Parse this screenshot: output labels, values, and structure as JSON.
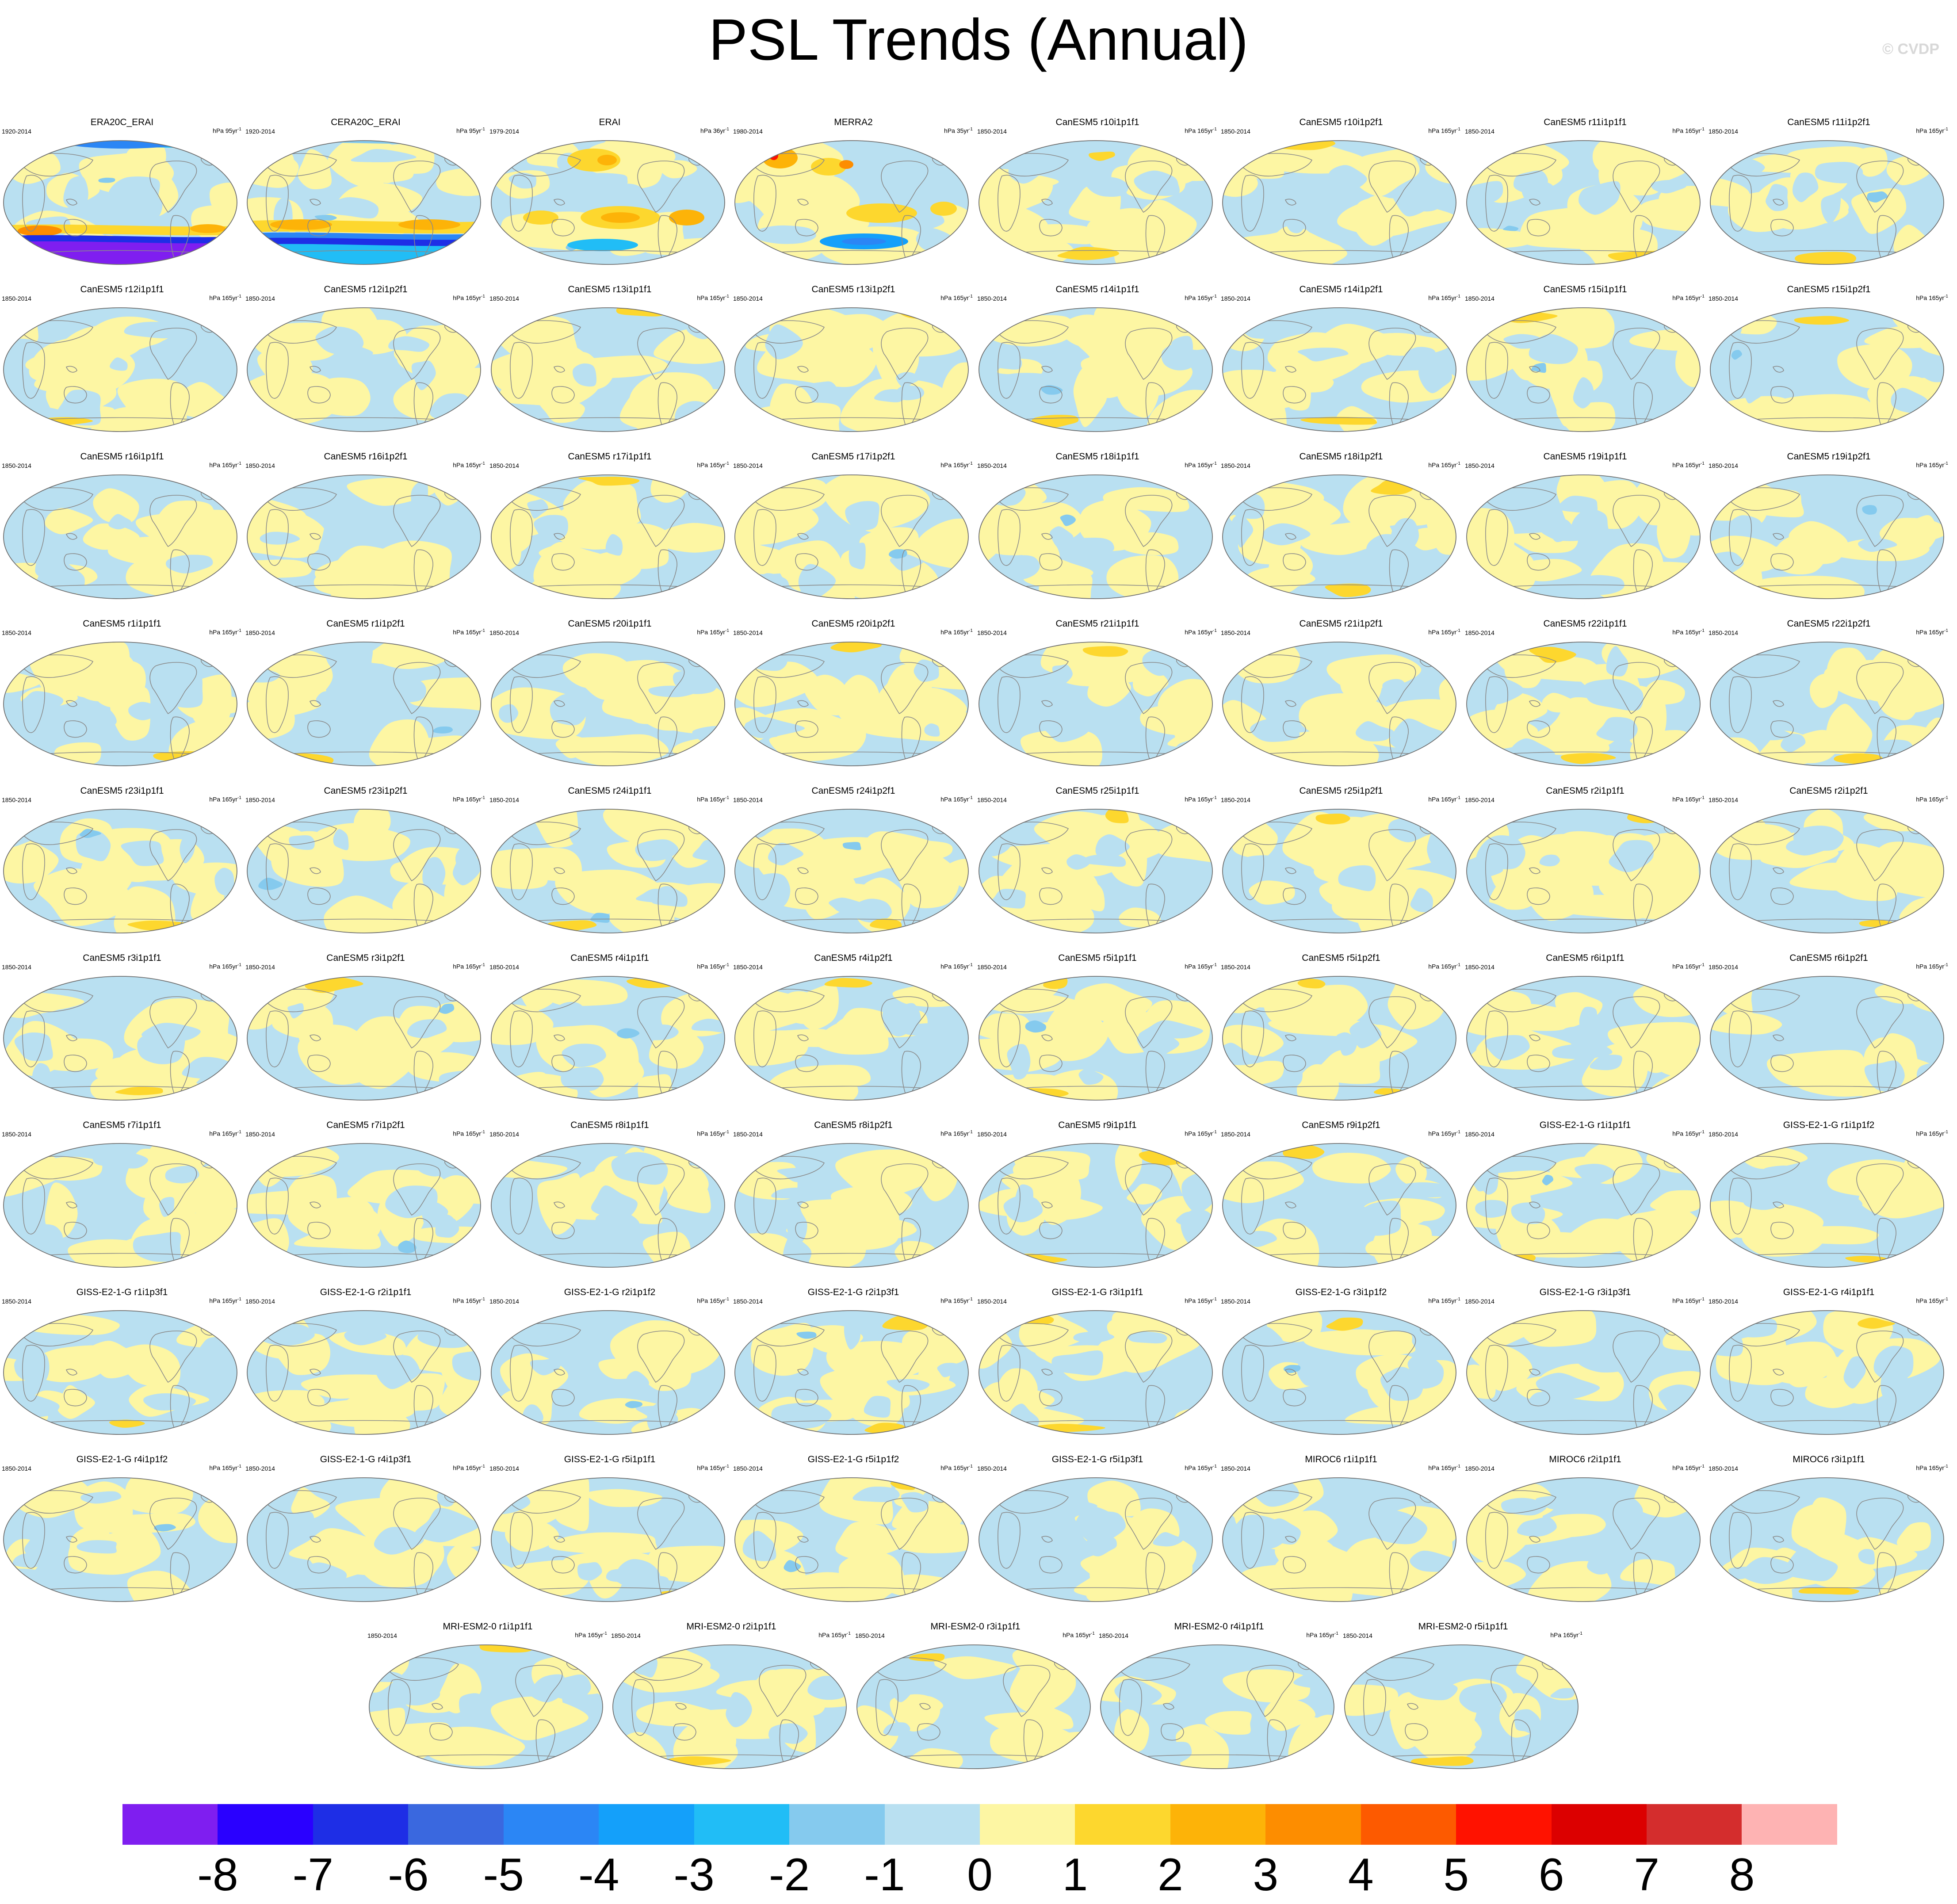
{
  "title": "PSL Trends (Annual)",
  "credit": "© CVDP",
  "colors": {
    "ocean_base": "#c8e6f4",
    "land_line": "#8a8a8a"
  },
  "colorbar": {
    "colors": [
      "#7f1ef0",
      "#2a00ff",
      "#1e2ee6",
      "#3a68df",
      "#2b86f5",
      "#14a0fa",
      "#21bdf6",
      "#85caee",
      "#b9e0f1",
      "#fdf6a3",
      "#fdd72e",
      "#fdb308",
      "#fd8d00",
      "#fd5a00",
      "#ff1200",
      "#dc0000",
      "#d42d2d",
      "#feb3b3"
    ],
    "tick_labels": [
      "-8",
      "-7",
      "-6",
      "-5",
      "-4",
      "-3",
      "-2",
      "-1",
      "0",
      "1",
      "2",
      "3",
      "4",
      "5",
      "6",
      "7",
      "8"
    ]
  },
  "panels": [
    {
      "title": "ERA20C_ERAI",
      "period": "1920-2014",
      "units": "hPa 95yr",
      "exp": "-1",
      "style": "era20c"
    },
    {
      "title": "CERA20C_ERAI",
      "period": "1920-2014",
      "units": "hPa 95yr",
      "exp": "-1",
      "style": "cera20c"
    },
    {
      "title": "ERAI",
      "period": "1979-2014",
      "units": "hPa 36yr",
      "exp": "-1",
      "style": "erai"
    },
    {
      "title": "MERRA2",
      "period": "1980-2014",
      "units": "hPa 35yr",
      "exp": "-1",
      "style": "merra2"
    },
    {
      "title": "CanESM5 r10i1p1f1",
      "period": "1850-2014",
      "units": "hPa 165yr",
      "exp": "-1"
    },
    {
      "title": "CanESM5 r10i1p2f1",
      "period": "1850-2014",
      "units": "hPa 165yr",
      "exp": "-1"
    },
    {
      "title": "CanESM5 r11i1p1f1",
      "period": "1850-2014",
      "units": "hPa 165yr",
      "exp": "-1"
    },
    {
      "title": "CanESM5 r11i1p2f1",
      "period": "1850-2014",
      "units": "hPa 165yr",
      "exp": "-1"
    },
    {
      "title": "CanESM5 r12i1p1f1",
      "period": "1850-2014",
      "units": "hPa 165yr",
      "exp": "-1"
    },
    {
      "title": "CanESM5 r12i1p2f1",
      "period": "1850-2014",
      "units": "hPa 165yr",
      "exp": "-1"
    },
    {
      "title": "CanESM5 r13i1p1f1",
      "period": "1850-2014",
      "units": "hPa 165yr",
      "exp": "-1"
    },
    {
      "title": "CanESM5 r13i1p2f1",
      "period": "1850-2014",
      "units": "hPa 165yr",
      "exp": "-1"
    },
    {
      "title": "CanESM5 r14i1p1f1",
      "period": "1850-2014",
      "units": "hPa 165yr",
      "exp": "-1"
    },
    {
      "title": "CanESM5 r14i1p2f1",
      "period": "1850-2014",
      "units": "hPa 165yr",
      "exp": "-1"
    },
    {
      "title": "CanESM5 r15i1p1f1",
      "period": "1850-2014",
      "units": "hPa 165yr",
      "exp": "-1"
    },
    {
      "title": "CanESM5 r15i1p2f1",
      "period": "1850-2014",
      "units": "hPa 165yr",
      "exp": "-1"
    },
    {
      "title": "CanESM5 r16i1p1f1",
      "period": "1850-2014",
      "units": "hPa 165yr",
      "exp": "-1"
    },
    {
      "title": "CanESM5 r16i1p2f1",
      "period": "1850-2014",
      "units": "hPa 165yr",
      "exp": "-1"
    },
    {
      "title": "CanESM5 r17i1p1f1",
      "period": "1850-2014",
      "units": "hPa 165yr",
      "exp": "-1"
    },
    {
      "title": "CanESM5 r17i1p2f1",
      "period": "1850-2014",
      "units": "hPa 165yr",
      "exp": "-1"
    },
    {
      "title": "CanESM5 r18i1p1f1",
      "period": "1850-2014",
      "units": "hPa 165yr",
      "exp": "-1"
    },
    {
      "title": "CanESM5 r18i1p2f1",
      "period": "1850-2014",
      "units": "hPa 165yr",
      "exp": "-1"
    },
    {
      "title": "CanESM5 r19i1p1f1",
      "period": "1850-2014",
      "units": "hPa 165yr",
      "exp": "-1"
    },
    {
      "title": "CanESM5 r19i1p2f1",
      "period": "1850-2014",
      "units": "hPa 165yr",
      "exp": "-1"
    },
    {
      "title": "CanESM5 r1i1p1f1",
      "period": "1850-2014",
      "units": "hPa 165yr",
      "exp": "-1"
    },
    {
      "title": "CanESM5 r1i1p2f1",
      "period": "1850-2014",
      "units": "hPa 165yr",
      "exp": "-1"
    },
    {
      "title": "CanESM5 r20i1p1f1",
      "period": "1850-2014",
      "units": "hPa 165yr",
      "exp": "-1"
    },
    {
      "title": "CanESM5 r20i1p2f1",
      "period": "1850-2014",
      "units": "hPa 165yr",
      "exp": "-1"
    },
    {
      "title": "CanESM5 r21i1p1f1",
      "period": "1850-2014",
      "units": "hPa 165yr",
      "exp": "-1"
    },
    {
      "title": "CanESM5 r21i1p2f1",
      "period": "1850-2014",
      "units": "hPa 165yr",
      "exp": "-1"
    },
    {
      "title": "CanESM5 r22i1p1f1",
      "period": "1850-2014",
      "units": "hPa 165yr",
      "exp": "-1"
    },
    {
      "title": "CanESM5 r22i1p2f1",
      "period": "1850-2014",
      "units": "hPa 165yr",
      "exp": "-1"
    },
    {
      "title": "CanESM5 r23i1p1f1",
      "period": "1850-2014",
      "units": "hPa 165yr",
      "exp": "-1"
    },
    {
      "title": "CanESM5 r23i1p2f1",
      "period": "1850-2014",
      "units": "hPa 165yr",
      "exp": "-1"
    },
    {
      "title": "CanESM5 r24i1p1f1",
      "period": "1850-2014",
      "units": "hPa 165yr",
      "exp": "-1"
    },
    {
      "title": "CanESM5 r24i1p2f1",
      "period": "1850-2014",
      "units": "hPa 165yr",
      "exp": "-1"
    },
    {
      "title": "CanESM5 r25i1p1f1",
      "period": "1850-2014",
      "units": "hPa 165yr",
      "exp": "-1"
    },
    {
      "title": "CanESM5 r25i1p2f1",
      "period": "1850-2014",
      "units": "hPa 165yr",
      "exp": "-1"
    },
    {
      "title": "CanESM5 r2i1p1f1",
      "period": "1850-2014",
      "units": "hPa 165yr",
      "exp": "-1"
    },
    {
      "title": "CanESM5 r2i1p2f1",
      "period": "1850-2014",
      "units": "hPa 165yr",
      "exp": "-1"
    },
    {
      "title": "CanESM5 r3i1p1f1",
      "period": "1850-2014",
      "units": "hPa 165yr",
      "exp": "-1"
    },
    {
      "title": "CanESM5 r3i1p2f1",
      "period": "1850-2014",
      "units": "hPa 165yr",
      "exp": "-1"
    },
    {
      "title": "CanESM5 r4i1p1f1",
      "period": "1850-2014",
      "units": "hPa 165yr",
      "exp": "-1"
    },
    {
      "title": "CanESM5 r4i1p2f1",
      "period": "1850-2014",
      "units": "hPa 165yr",
      "exp": "-1"
    },
    {
      "title": "CanESM5 r5i1p1f1",
      "period": "1850-2014",
      "units": "hPa 165yr",
      "exp": "-1"
    },
    {
      "title": "CanESM5 r5i1p2f1",
      "period": "1850-2014",
      "units": "hPa 165yr",
      "exp": "-1"
    },
    {
      "title": "CanESM5 r6i1p1f1",
      "period": "1850-2014",
      "units": "hPa 165yr",
      "exp": "-1"
    },
    {
      "title": "CanESM5 r6i1p2f1",
      "period": "1850-2014",
      "units": "hPa 165yr",
      "exp": "-1"
    },
    {
      "title": "CanESM5 r7i1p1f1",
      "period": "1850-2014",
      "units": "hPa 165yr",
      "exp": "-1"
    },
    {
      "title": "CanESM5 r7i1p2f1",
      "period": "1850-2014",
      "units": "hPa 165yr",
      "exp": "-1"
    },
    {
      "title": "CanESM5 r8i1p1f1",
      "period": "1850-2014",
      "units": "hPa 165yr",
      "exp": "-1"
    },
    {
      "title": "CanESM5 r8i1p2f1",
      "period": "1850-2014",
      "units": "hPa 165yr",
      "exp": "-1"
    },
    {
      "title": "CanESM5 r9i1p1f1",
      "period": "1850-2014",
      "units": "hPa 165yr",
      "exp": "-1"
    },
    {
      "title": "CanESM5 r9i1p2f1",
      "period": "1850-2014",
      "units": "hPa 165yr",
      "exp": "-1"
    },
    {
      "title": "GISS-E2-1-G r1i1p1f1",
      "period": "1850-2014",
      "units": "hPa 165yr",
      "exp": "-1"
    },
    {
      "title": "GISS-E2-1-G r1i1p1f2",
      "period": "1850-2014",
      "units": "hPa 165yr",
      "exp": "-1"
    },
    {
      "title": "GISS-E2-1-G r1i1p3f1",
      "period": "1850-2014",
      "units": "hPa 165yr",
      "exp": "-1"
    },
    {
      "title": "GISS-E2-1-G r2i1p1f1",
      "period": "1850-2014",
      "units": "hPa 165yr",
      "exp": "-1"
    },
    {
      "title": "GISS-E2-1-G r2i1p1f2",
      "period": "1850-2014",
      "units": "hPa 165yr",
      "exp": "-1"
    },
    {
      "title": "GISS-E2-1-G r2i1p3f1",
      "period": "1850-2014",
      "units": "hPa 165yr",
      "exp": "-1"
    },
    {
      "title": "GISS-E2-1-G r3i1p1f1",
      "period": "1850-2014",
      "units": "hPa 165yr",
      "exp": "-1"
    },
    {
      "title": "GISS-E2-1-G r3i1p1f2",
      "period": "1850-2014",
      "units": "hPa 165yr",
      "exp": "-1"
    },
    {
      "title": "GISS-E2-1-G r3i1p3f1",
      "period": "1850-2014",
      "units": "hPa 165yr",
      "exp": "-1"
    },
    {
      "title": "GISS-E2-1-G r4i1p1f1",
      "period": "1850-2014",
      "units": "hPa 165yr",
      "exp": "-1"
    },
    {
      "title": "GISS-E2-1-G r4i1p1f2",
      "period": "1850-2014",
      "units": "hPa 165yr",
      "exp": "-1"
    },
    {
      "title": "GISS-E2-1-G r4i1p3f1",
      "period": "1850-2014",
      "units": "hPa 165yr",
      "exp": "-1"
    },
    {
      "title": "GISS-E2-1-G r5i1p1f1",
      "period": "1850-2014",
      "units": "hPa 165yr",
      "exp": "-1"
    },
    {
      "title": "GISS-E2-1-G r5i1p1f2",
      "period": "1850-2014",
      "units": "hPa 165yr",
      "exp": "-1"
    },
    {
      "title": "GISS-E2-1-G r5i1p3f1",
      "period": "1850-2014",
      "units": "hPa 165yr",
      "exp": "-1"
    },
    {
      "title": "MIROC6 r1i1p1f1",
      "period": "1850-2014",
      "units": "hPa 165yr",
      "exp": "-1"
    },
    {
      "title": "MIROC6 r2i1p1f1",
      "period": "1850-2014",
      "units": "hPa 165yr",
      "exp": "-1"
    },
    {
      "title": "MIROC6 r3i1p1f1",
      "period": "1850-2014",
      "units": "hPa 165yr",
      "exp": "-1"
    },
    {
      "title": "MRI-ESM2-0 r1i1p1f1",
      "period": "1850-2014",
      "units": "hPa 165yr",
      "exp": "-1"
    },
    {
      "title": "MRI-ESM2-0 r2i1p1f1",
      "period": "1850-2014",
      "units": "hPa 165yr",
      "exp": "-1"
    },
    {
      "title": "MRI-ESM2-0 r3i1p1f1",
      "period": "1850-2014",
      "units": "hPa 165yr",
      "exp": "-1"
    },
    {
      "title": "MRI-ESM2-0 r4i1p1f1",
      "period": "1850-2014",
      "units": "hPa 165yr",
      "exp": "-1"
    },
    {
      "title": "MRI-ESM2-0 r5i1p1f1",
      "period": "1850-2014",
      "units": "hPa 165yr",
      "exp": "-1"
    }
  ]
}
